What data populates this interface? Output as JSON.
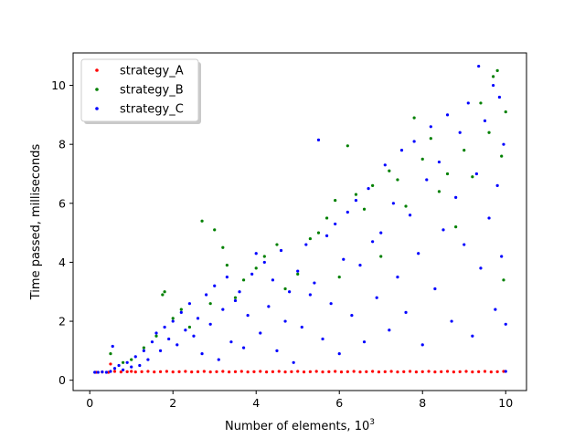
{
  "chart_data": {
    "type": "scatter",
    "xlabel": "Number of elements, 10",
    "xlabel_superscript": "3",
    "ylabel": "Time passed, milliseconds",
    "xlim": [
      -0.4,
      10.5
    ],
    "ylim": [
      -0.35,
      11.1
    ],
    "xticks": [
      0,
      2,
      4,
      6,
      8,
      10
    ],
    "yticks": [
      0,
      2,
      4,
      6,
      8,
      10
    ],
    "grid": false,
    "legend_position": "upper-left",
    "series": [
      {
        "name": "strategy_A",
        "color": "#ff0000",
        "points": [
          [
            0.15,
            0.27
          ],
          [
            0.3,
            0.28
          ],
          [
            0.45,
            0.27
          ],
          [
            0.5,
            0.55
          ],
          [
            0.6,
            0.3
          ],
          [
            0.75,
            0.28
          ],
          [
            0.9,
            0.29
          ],
          [
            1.0,
            0.3
          ],
          [
            1.1,
            0.28
          ],
          [
            1.25,
            0.29
          ],
          [
            1.4,
            0.3
          ],
          [
            1.55,
            0.28
          ],
          [
            1.7,
            0.29
          ],
          [
            1.85,
            0.3
          ],
          [
            2.0,
            0.28
          ],
          [
            2.15,
            0.29
          ],
          [
            2.3,
            0.3
          ],
          [
            2.45,
            0.28
          ],
          [
            2.6,
            0.29
          ],
          [
            2.75,
            0.3
          ],
          [
            2.9,
            0.28
          ],
          [
            3.05,
            0.29
          ],
          [
            3.2,
            0.3
          ],
          [
            3.35,
            0.28
          ],
          [
            3.5,
            0.29
          ],
          [
            3.65,
            0.3
          ],
          [
            3.8,
            0.28
          ],
          [
            3.95,
            0.29
          ],
          [
            4.1,
            0.3
          ],
          [
            4.25,
            0.28
          ],
          [
            4.4,
            0.29
          ],
          [
            4.55,
            0.3
          ],
          [
            4.7,
            0.28
          ],
          [
            4.85,
            0.29
          ],
          [
            5.0,
            0.3
          ],
          [
            5.15,
            0.28
          ],
          [
            5.3,
            0.29
          ],
          [
            5.45,
            0.3
          ],
          [
            5.6,
            0.28
          ],
          [
            5.75,
            0.29
          ],
          [
            5.9,
            0.3
          ],
          [
            6.05,
            0.28
          ],
          [
            6.2,
            0.29
          ],
          [
            6.35,
            0.3
          ],
          [
            6.5,
            0.28
          ],
          [
            6.65,
            0.29
          ],
          [
            6.8,
            0.3
          ],
          [
            6.95,
            0.28
          ],
          [
            7.1,
            0.29
          ],
          [
            7.25,
            0.3
          ],
          [
            7.4,
            0.28
          ],
          [
            7.55,
            0.29
          ],
          [
            7.7,
            0.3
          ],
          [
            7.85,
            0.28
          ],
          [
            8.0,
            0.29
          ],
          [
            8.15,
            0.3
          ],
          [
            8.3,
            0.28
          ],
          [
            8.45,
            0.29
          ],
          [
            8.6,
            0.3
          ],
          [
            8.75,
            0.28
          ],
          [
            8.9,
            0.29
          ],
          [
            9.05,
            0.3
          ],
          [
            9.2,
            0.28
          ],
          [
            9.35,
            0.29
          ],
          [
            9.5,
            0.3
          ],
          [
            9.65,
            0.28
          ],
          [
            9.8,
            0.29
          ],
          [
            9.95,
            0.3
          ]
        ]
      },
      {
        "name": "strategy_B",
        "color": "#008000",
        "points": [
          [
            0.5,
            0.9
          ],
          [
            0.8,
            0.6
          ],
          [
            1.0,
            0.7
          ],
          [
            1.3,
            1.1
          ],
          [
            1.6,
            1.5
          ],
          [
            1.75,
            2.9
          ],
          [
            1.8,
            3.0
          ],
          [
            2.0,
            2.1
          ],
          [
            2.2,
            2.4
          ],
          [
            2.4,
            1.8
          ],
          [
            2.7,
            5.4
          ],
          [
            2.9,
            2.6
          ],
          [
            3.0,
            5.1
          ],
          [
            3.2,
            4.5
          ],
          [
            3.3,
            3.9
          ],
          [
            3.5,
            2.8
          ],
          [
            3.7,
            3.4
          ],
          [
            4.0,
            3.8
          ],
          [
            4.2,
            4.2
          ],
          [
            4.5,
            4.6
          ],
          [
            4.7,
            3.1
          ],
          [
            5.0,
            3.6
          ],
          [
            5.3,
            4.8
          ],
          [
            5.5,
            5.0
          ],
          [
            5.7,
            5.5
          ],
          [
            5.9,
            6.1
          ],
          [
            6.0,
            3.5
          ],
          [
            6.2,
            7.95
          ],
          [
            6.4,
            6.3
          ],
          [
            6.6,
            5.8
          ],
          [
            6.8,
            6.6
          ],
          [
            7.0,
            4.2
          ],
          [
            7.2,
            7.1
          ],
          [
            7.4,
            6.8
          ],
          [
            7.6,
            5.9
          ],
          [
            7.8,
            8.9
          ],
          [
            8.0,
            7.5
          ],
          [
            8.2,
            8.2
          ],
          [
            8.4,
            6.4
          ],
          [
            8.6,
            7.0
          ],
          [
            8.8,
            5.2
          ],
          [
            9.0,
            7.8
          ],
          [
            9.2,
            6.9
          ],
          [
            9.4,
            9.4
          ],
          [
            9.6,
            8.4
          ],
          [
            9.7,
            10.3
          ],
          [
            9.8,
            10.5
          ],
          [
            9.9,
            7.6
          ],
          [
            10.0,
            9.1
          ],
          [
            9.95,
            3.4
          ]
        ]
      },
      {
        "name": "strategy_C",
        "color": "#0000ff",
        "points": [
          [
            0.12,
            0.27
          ],
          [
            0.2,
            0.27
          ],
          [
            0.3,
            0.28
          ],
          [
            0.4,
            0.27
          ],
          [
            0.5,
            0.3
          ],
          [
            0.55,
            1.15
          ],
          [
            0.6,
            0.4
          ],
          [
            0.7,
            0.5
          ],
          [
            0.8,
            0.35
          ],
          [
            0.9,
            0.6
          ],
          [
            1.0,
            0.45
          ],
          [
            1.1,
            0.8
          ],
          [
            1.2,
            0.5
          ],
          [
            1.3,
            1.0
          ],
          [
            1.4,
            0.7
          ],
          [
            1.5,
            1.3
          ],
          [
            1.6,
            1.6
          ],
          [
            1.7,
            1.0
          ],
          [
            1.8,
            1.8
          ],
          [
            1.9,
            1.4
          ],
          [
            2.0,
            2.0
          ],
          [
            2.1,
            1.2
          ],
          [
            2.2,
            2.3
          ],
          [
            2.3,
            1.7
          ],
          [
            2.4,
            2.6
          ],
          [
            2.5,
            1.5
          ],
          [
            2.6,
            2.1
          ],
          [
            2.7,
            0.9
          ],
          [
            2.8,
            2.9
          ],
          [
            2.9,
            1.9
          ],
          [
            3.0,
            3.2
          ],
          [
            3.1,
            0.7
          ],
          [
            3.2,
            2.4
          ],
          [
            3.3,
            3.5
          ],
          [
            3.4,
            1.3
          ],
          [
            3.5,
            2.7
          ],
          [
            3.6,
            3.0
          ],
          [
            3.7,
            1.1
          ],
          [
            3.8,
            2.2
          ],
          [
            3.9,
            3.6
          ],
          [
            4.0,
            4.3
          ],
          [
            4.1,
            1.6
          ],
          [
            4.2,
            4.0
          ],
          [
            4.3,
            2.5
          ],
          [
            4.4,
            3.4
          ],
          [
            4.5,
            1.0
          ],
          [
            4.6,
            4.4
          ],
          [
            4.7,
            2.0
          ],
          [
            4.8,
            3.0
          ],
          [
            4.9,
            0.6
          ],
          [
            5.0,
            3.7
          ],
          [
            5.1,
            1.8
          ],
          [
            5.2,
            4.6
          ],
          [
            5.3,
            2.9
          ],
          [
            5.4,
            3.3
          ],
          [
            5.5,
            8.15
          ],
          [
            5.6,
            1.4
          ],
          [
            5.7,
            4.9
          ],
          [
            5.8,
            2.6
          ],
          [
            5.9,
            5.3
          ],
          [
            6.0,
            0.9
          ],
          [
            6.1,
            4.1
          ],
          [
            6.2,
            5.7
          ],
          [
            6.3,
            2.2
          ],
          [
            6.4,
            6.1
          ],
          [
            6.5,
            3.9
          ],
          [
            6.6,
            1.3
          ],
          [
            6.7,
            6.5
          ],
          [
            6.8,
            4.7
          ],
          [
            6.9,
            2.8
          ],
          [
            7.0,
            5.0
          ],
          [
            7.1,
            7.3
          ],
          [
            7.2,
            1.7
          ],
          [
            7.3,
            6.0
          ],
          [
            7.4,
            3.5
          ],
          [
            7.5,
            7.8
          ],
          [
            7.6,
            2.3
          ],
          [
            7.7,
            5.6
          ],
          [
            7.8,
            8.1
          ],
          [
            7.9,
            4.3
          ],
          [
            8.0,
            1.2
          ],
          [
            8.1,
            6.8
          ],
          [
            8.2,
            8.6
          ],
          [
            8.3,
            3.1
          ],
          [
            8.4,
            7.4
          ],
          [
            8.5,
            5.1
          ],
          [
            8.6,
            9.0
          ],
          [
            8.7,
            2.0
          ],
          [
            8.8,
            6.2
          ],
          [
            8.9,
            8.4
          ],
          [
            9.0,
            4.6
          ],
          [
            9.1,
            9.4
          ],
          [
            9.2,
            1.5
          ],
          [
            9.3,
            7.0
          ],
          [
            9.35,
            10.65
          ],
          [
            9.4,
            3.8
          ],
          [
            9.5,
            8.8
          ],
          [
            9.6,
            5.5
          ],
          [
            9.7,
            10.0
          ],
          [
            9.75,
            2.4
          ],
          [
            9.8,
            6.6
          ],
          [
            9.85,
            9.6
          ],
          [
            9.9,
            4.2
          ],
          [
            9.95,
            8.0
          ],
          [
            10.0,
            0.3
          ],
          [
            10.0,
            1.9
          ]
        ]
      }
    ]
  }
}
